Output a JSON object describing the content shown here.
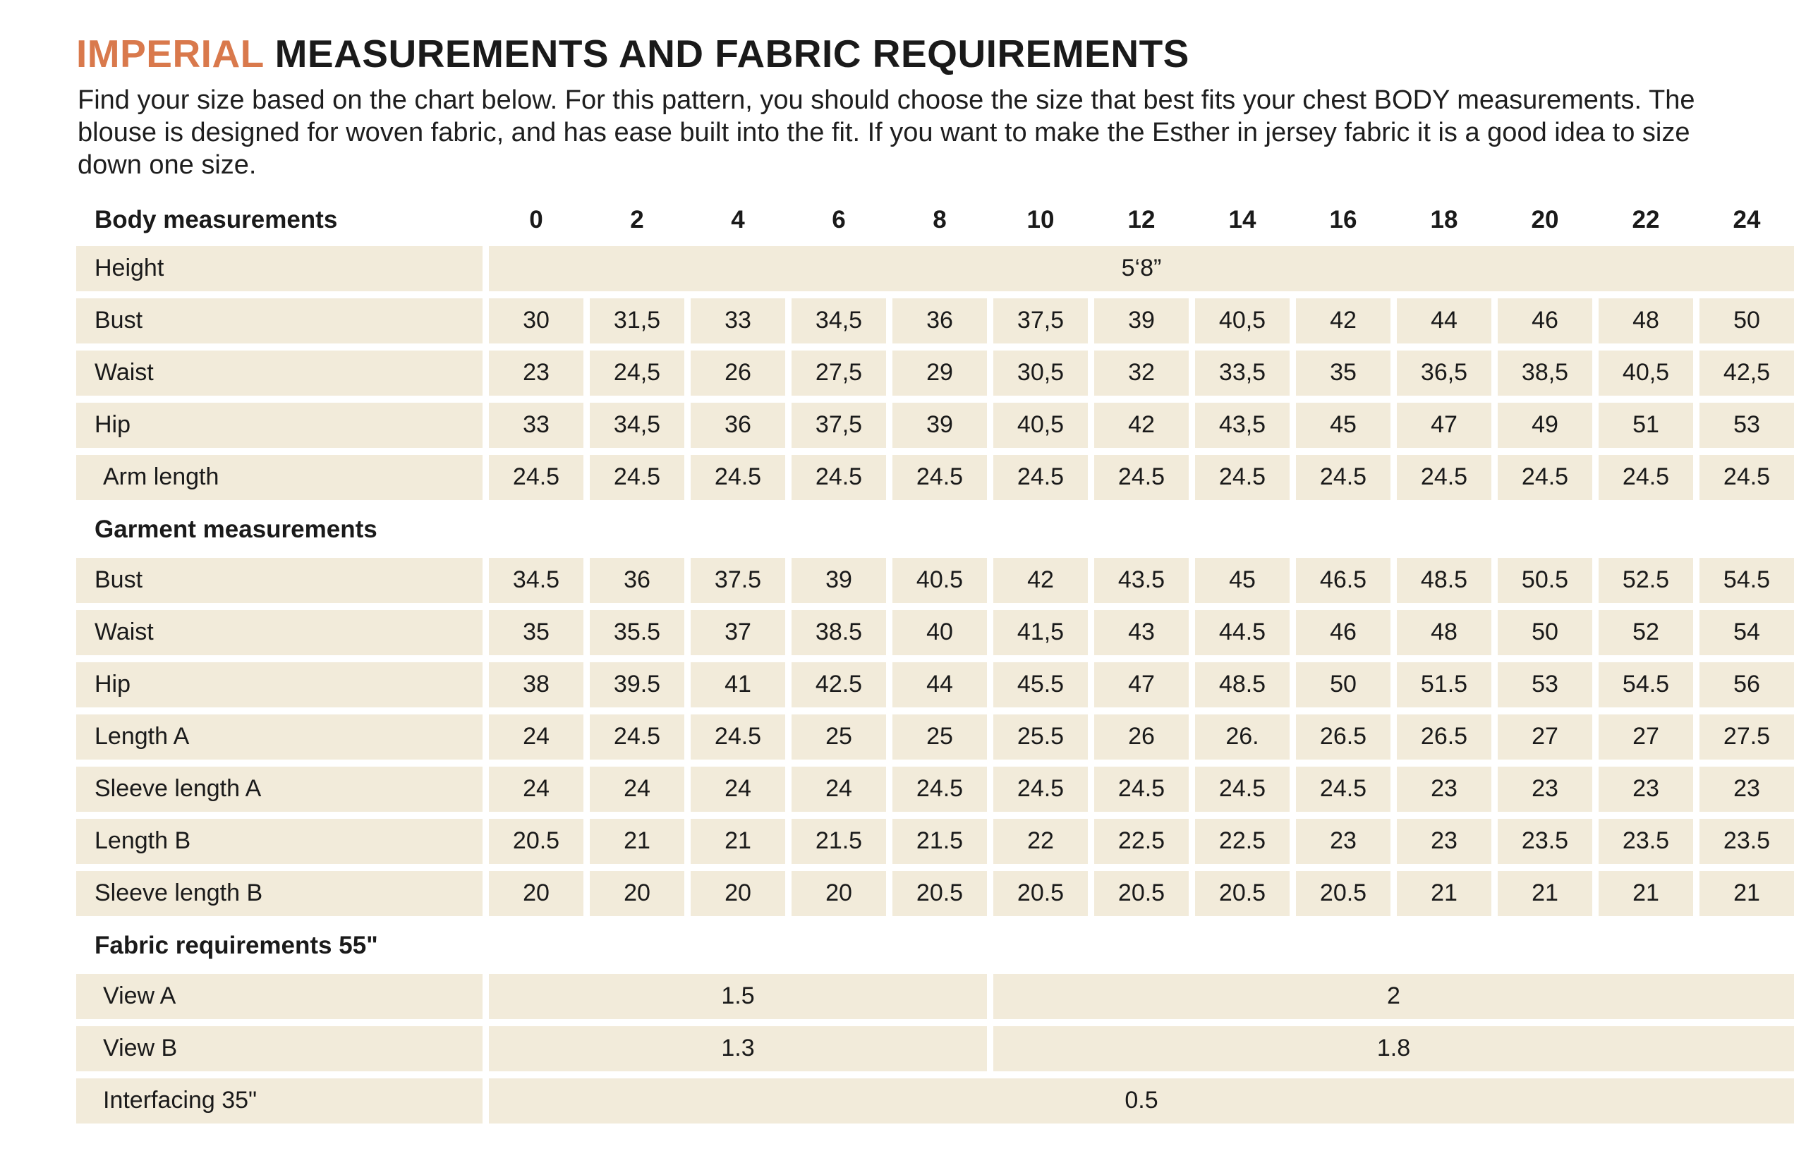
{
  "colors": {
    "accent": "#d9794c",
    "cell_bg": "#f2ebda",
    "text": "#1a1a1a"
  },
  "title": {
    "highlight": "IMPERIAL",
    "rest": "MEASUREMENTS AND FABRIC REQUIREMENTS"
  },
  "intro": "Find your size based on the chart below. For this pattern, you should choose the size that best fits your chest BODY measurements.  The blouse is designed for woven fabric, and has ease built into the fit. If you want to make the Esther in jersey fabric it is a good idea to size down one size.",
  "table": {
    "rows": [
      {
        "type": "header",
        "label": "Body measurements",
        "sizes": [
          "0",
          "2",
          "4",
          "6",
          "8",
          "10",
          "12",
          "14",
          "16",
          "18",
          "20",
          "22",
          "24"
        ]
      },
      {
        "type": "span",
        "label": "Height",
        "value": "5‘8”"
      },
      {
        "type": "data",
        "label": "Bust",
        "values": [
          "30",
          "31,5",
          "33",
          "34,5",
          "36",
          "37,5",
          "39",
          "40,5",
          "42",
          "44",
          "46",
          "48",
          "50"
        ]
      },
      {
        "type": "data",
        "label": "Waist",
        "values": [
          "23",
          "24,5",
          "26",
          "27,5",
          "29",
          "30,5",
          "32",
          "33,5",
          "35",
          "36,5",
          "38,5",
          "40,5",
          "42,5"
        ]
      },
      {
        "type": "data",
        "label": "Hip",
        "values": [
          "33",
          "34,5",
          "36",
          "37,5",
          "39",
          "40,5",
          "42",
          "43,5",
          "45",
          "47",
          "49",
          "51",
          "53"
        ]
      },
      {
        "type": "data",
        "label": "Arm length",
        "indent": true,
        "values": [
          "24.5",
          "24.5",
          "24.5",
          "24.5",
          "24.5",
          "24.5",
          "24.5",
          "24.5",
          "24.5",
          "24.5",
          "24.5",
          "24.5",
          "24.5"
        ]
      },
      {
        "type": "section",
        "label": "Garment measurements"
      },
      {
        "type": "data",
        "label": "Bust",
        "values": [
          "34.5",
          "36",
          "37.5",
          "39",
          "40.5",
          "42",
          "43.5",
          "45",
          "46.5",
          "48.5",
          "50.5",
          "52.5",
          "54.5"
        ]
      },
      {
        "type": "data",
        "label": "Waist",
        "values": [
          "35",
          "35.5",
          "37",
          "38.5",
          "40",
          "41,5",
          "43",
          "44.5",
          "46",
          "48",
          "50",
          "52",
          "54"
        ]
      },
      {
        "type": "data",
        "label": "Hip",
        "values": [
          "38",
          "39.5",
          "41",
          "42.5",
          "44",
          "45.5",
          "47",
          "48.5",
          "50",
          "51.5",
          "53",
          "54.5",
          "56"
        ]
      },
      {
        "type": "data",
        "label": "Length A",
        "values": [
          "24",
          "24.5",
          "24.5",
          "25",
          "25",
          "25.5",
          "26",
          "26.",
          "26.5",
          "26.5",
          "27",
          "27",
          "27.5"
        ]
      },
      {
        "type": "data",
        "label": "Sleeve length A",
        "values": [
          "24",
          "24",
          "24",
          "24",
          "24.5",
          "24.5",
          "24.5",
          "24.5",
          "24.5",
          "23",
          "23",
          "23",
          "23"
        ]
      },
      {
        "type": "data",
        "label": "Length B",
        "values": [
          "20.5",
          "21",
          "21",
          "21.5",
          "21.5",
          "22",
          "22.5",
          "22.5",
          "23",
          "23",
          "23.5",
          "23.5",
          "23.5"
        ]
      },
      {
        "type": "data",
        "label": "Sleeve length B",
        "values": [
          "20",
          "20",
          "20",
          "20",
          "20.5",
          "20.5",
          "20.5",
          "20.5",
          "20.5",
          "21",
          "21",
          "21",
          "21"
        ]
      },
      {
        "type": "section",
        "label": "Fabric requirements 55\""
      },
      {
        "type": "fabric",
        "label": "View A",
        "indent": true,
        "left": "1.5",
        "right": "2"
      },
      {
        "type": "fabric",
        "label": "View B",
        "indent": true,
        "left": "1.3",
        "right": "1.8"
      },
      {
        "type": "span",
        "label": "Interfacing 35\"",
        "indent": true,
        "value": "0.5"
      }
    ]
  }
}
